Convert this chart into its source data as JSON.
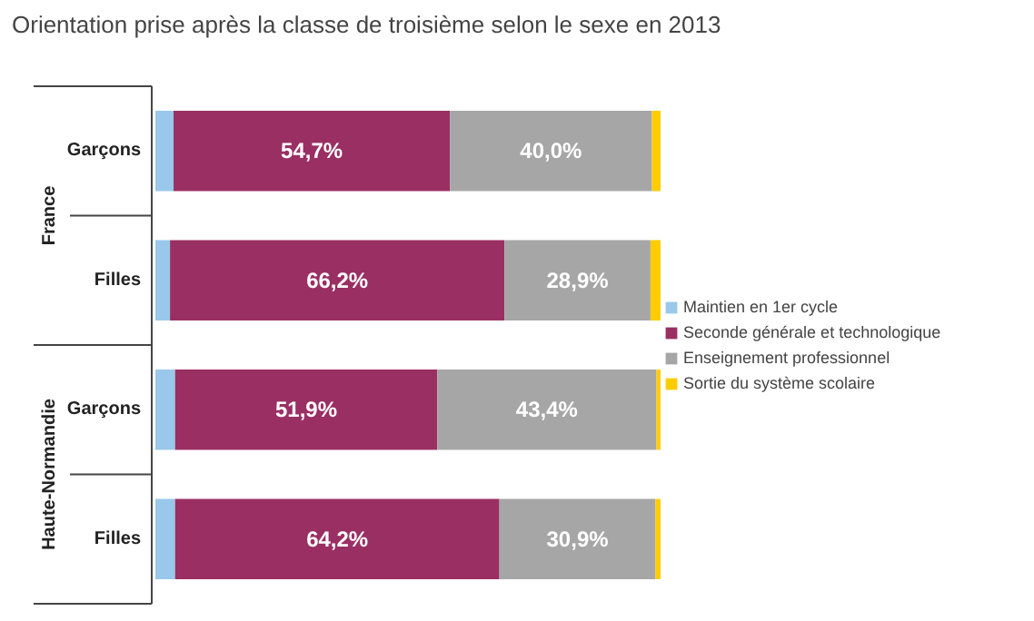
{
  "chart_data": {
    "type": "bar",
    "orientation": "horizontal",
    "stacked": true,
    "title": "Orientation prise après la classe de troisième selon le sexe en 2013",
    "categories": [
      "Garçons",
      "Filles",
      "Garçons",
      "Filles"
    ],
    "annotations": [
      "France",
      "Haute-Normandie"
    ],
    "series": [
      {
        "name": "Maintien en 1er cycle",
        "color": "#99c8ea",
        "values": [
          3.6,
          2.9,
          3.9,
          3.9
        ]
      },
      {
        "name": "Seconde générale et technologique",
        "color": "#9a2f63",
        "values": [
          54.7,
          66.2,
          51.9,
          64.2
        ],
        "value_labels": [
          "54,7%",
          "66,2%",
          "51,9%",
          "64,2%"
        ]
      },
      {
        "name": "Enseignement professionnel",
        "color": "#a6a6a6",
        "values": [
          40.0,
          28.9,
          43.4,
          30.9
        ],
        "value_labels": [
          "40,0%",
          "28,9%",
          "43,4%",
          "30,9%"
        ]
      },
      {
        "name": "Sortie du système scolaire",
        "color": "#ffcc00",
        "values": [
          1.7,
          2.0,
          0.8,
          1.0
        ]
      }
    ],
    "legend": "right",
    "grid": false
  }
}
